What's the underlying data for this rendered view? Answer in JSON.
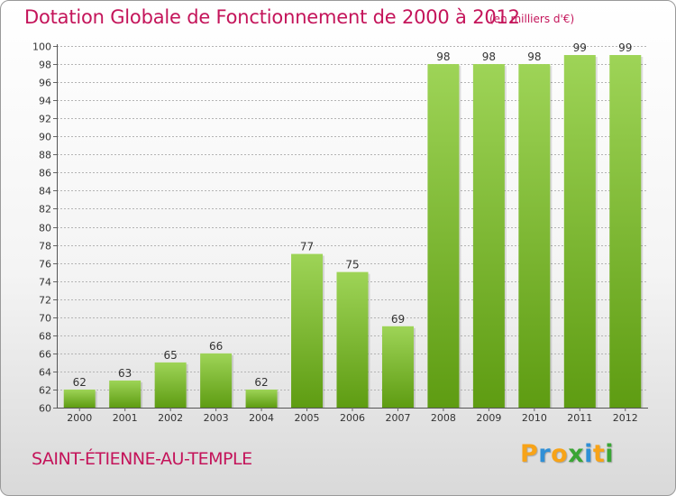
{
  "title": "Dotation Globale de Fonctionnement de 2000 à 2012",
  "unit": "(en milliers d'€)",
  "commune": "SAINT-ÉTIENNE-AU-TEMPLE",
  "logo": {
    "text": "Proxiti",
    "letters": [
      {
        "ch": "P",
        "color": "#f7a318"
      },
      {
        "ch": "r",
        "color": "#2f8fd6"
      },
      {
        "ch": "o",
        "color": "#f7a318"
      },
      {
        "ch": "x",
        "color": "#3aa535"
      },
      {
        "ch": "i",
        "color": "#2f8fd6"
      },
      {
        "ch": "t",
        "color": "#f7a318"
      },
      {
        "ch": "i",
        "color": "#3aa535"
      }
    ]
  },
  "colors": {
    "title": "#c4145a",
    "bar_top": "#9ed457",
    "bar_bottom": "#5e9c12",
    "grid": "#b4b4b4"
  },
  "chart_data": {
    "type": "bar",
    "categories": [
      "2000",
      "2001",
      "2002",
      "2003",
      "2004",
      "2005",
      "2006",
      "2007",
      "2008",
      "2009",
      "2010",
      "2011",
      "2012"
    ],
    "values": [
      62,
      63,
      65,
      66,
      62,
      77,
      75,
      69,
      98,
      98,
      98,
      99,
      99
    ],
    "ylim": [
      60,
      100
    ],
    "ytick_step": 2,
    "grid": true,
    "title": "Dotation Globale de Fonctionnement de 2000 à 2012",
    "xlabel": "",
    "ylabel": ""
  }
}
